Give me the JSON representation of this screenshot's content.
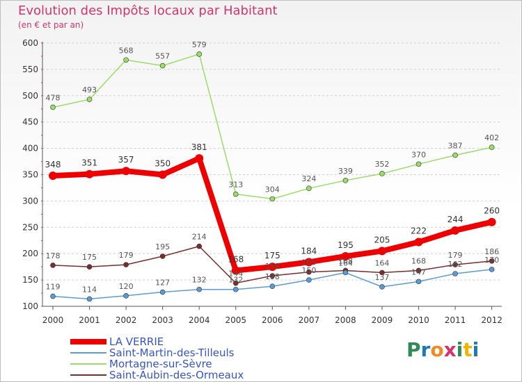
{
  "chart_data": {
    "type": "line",
    "title": "Evolution des Impôts locaux par Habitant",
    "subtitle": "(en € et par an)",
    "xlabel": "",
    "ylabel": "",
    "ylim": [
      100,
      600
    ],
    "yticks": [
      "100",
      "150",
      "200",
      "250",
      "300",
      "350",
      "400",
      "450",
      "500",
      "550",
      "600"
    ],
    "categories": [
      "2000",
      "2001",
      "2002",
      "2003",
      "2004",
      "2005",
      "2006",
      "2007",
      "2008",
      "2009",
      "2010",
      "2011",
      "2012"
    ],
    "legend_position": "bottom-left",
    "series": [
      {
        "name": "LA VERRIE",
        "color": "#ee0000",
        "values": [
          348,
          351,
          357,
          350,
          381,
          168,
          175,
          184,
          195,
          205,
          222,
          244,
          260
        ]
      },
      {
        "name": "Saint-Martin-des-Tilleuls",
        "color": "#5b9bd5",
        "values": [
          119,
          114,
          120,
          127,
          132,
          132,
          138,
          150,
          164,
          137,
          147,
          162,
          170
        ]
      },
      {
        "name": "Mortagne-sur-Sèvre",
        "color": "#99dd66",
        "values": [
          478,
          493,
          568,
          557,
          579,
          313,
          304,
          324,
          339,
          352,
          370,
          387,
          402
        ]
      },
      {
        "name": "Saint-Aubin-des-Ormeaux",
        "color": "#7b2c2c",
        "values": [
          178,
          175,
          179,
          195,
          214,
          144,
          158,
          165,
          168,
          164,
          168,
          179,
          186
        ]
      }
    ]
  },
  "logo": {
    "text": "Proxiti"
  }
}
